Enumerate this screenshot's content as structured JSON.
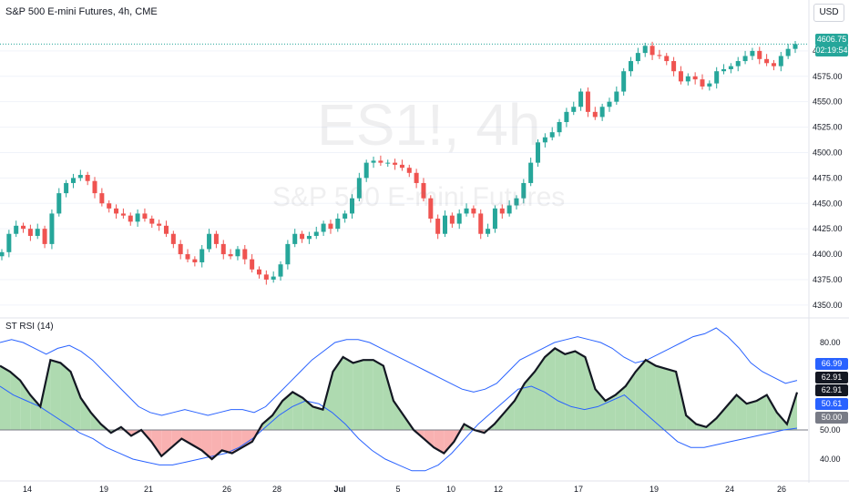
{
  "header": {
    "symbol_title": "S&P 500 E-mini Futures, 4h, CME",
    "currency": "USD"
  },
  "watermark": {
    "ticker": "ES1!, 4h",
    "name": "S&P 500 E-mini Futures"
  },
  "indicator": {
    "title": "ST RSI (14)"
  },
  "price_labels": {
    "last_price": "4606.75",
    "countdown": "02:19:54",
    "upper_band": "66.99",
    "rsi_value_1": "62.91",
    "rsi_value_2": "62.91",
    "lower_band": "50.61",
    "mid_line": "50.00"
  },
  "colors": {
    "up": "#26a69a",
    "down": "#ef5350",
    "rsi_fill_up": "#a5d6a7",
    "rsi_fill_down": "#f8a8a8",
    "band": "#2962ff",
    "rsi_line": "#131722"
  },
  "chart_data": [
    {
      "type": "candlestick",
      "title": "S&P 500 E-mini Futures, 4h, CME",
      "y_ticks": [
        4350,
        4375,
        4400,
        4425,
        4450,
        4475,
        4500,
        4525,
        4550,
        4575,
        4600
      ],
      "ylim": [
        4340,
        4625
      ],
      "x_ticks": [
        "14",
        "19",
        "21",
        "26",
        "28",
        "Jul",
        "5",
        "10",
        "12",
        "17",
        "19",
        "24",
        "26"
      ],
      "close_path": [
        4402,
        4420,
        4428,
        4425,
        4418,
        4425,
        4410,
        4440,
        4460,
        4470,
        4475,
        4478,
        4472,
        4460,
        4450,
        4445,
        4440,
        4438,
        4432,
        4440,
        4435,
        4430,
        4428,
        4420,
        4410,
        4400,
        4395,
        4392,
        4405,
        4420,
        4410,
        4400,
        4398,
        4405,
        4395,
        4385,
        4380,
        4375,
        4378,
        4390,
        4410,
        4420,
        4415,
        4418,
        4422,
        4430,
        4425,
        4435,
        4440,
        4455,
        4475,
        4490,
        4492,
        4490,
        4490,
        4488,
        4485,
        4480,
        4470,
        4455,
        4435,
        4420,
        4438,
        4430,
        4440,
        4445,
        4440,
        4420,
        4425,
        4445,
        4440,
        4448,
        4455,
        4470,
        4490,
        4510,
        4515,
        4520,
        4530,
        4540,
        4545,
        4560,
        4540,
        4535,
        4545,
        4550,
        4560,
        4580,
        4590,
        4598,
        4605,
        4596,
        4595,
        4590,
        4580,
        4570,
        4575,
        4572,
        4565,
        4568,
        4580,
        4582,
        4585,
        4590,
        4595,
        4600,
        4592,
        4588,
        4585,
        4595,
        4602,
        4606.75
      ],
      "last_price": 4606.75
    },
    {
      "type": "line",
      "title": "ST RSI (14)",
      "y_ticks": [
        40,
        50,
        80
      ],
      "ylim": [
        35,
        85
      ],
      "midline": 50,
      "series": [
        {
          "name": "ST RSI (14)",
          "values": [
            72,
            70,
            67,
            62,
            58,
            74,
            73,
            70,
            61,
            56,
            52,
            49,
            51,
            48,
            50,
            46,
            41,
            44,
            47,
            45,
            43,
            40,
            43,
            42,
            44,
            46,
            52,
            55,
            60,
            63,
            61,
            58,
            57,
            70,
            75,
            73,
            74,
            74,
            72,
            60,
            55,
            50,
            47,
            44,
            42,
            46,
            52,
            50,
            49,
            52,
            56,
            60,
            66,
            70,
            75,
            78,
            76,
            77,
            75,
            64,
            60,
            62,
            65,
            70,
            74,
            72,
            71,
            70,
            55,
            52,
            51,
            54,
            58,
            62,
            59,
            60,
            62,
            56,
            52,
            62.91
          ]
        },
        {
          "name": "upper band",
          "values": [
            80,
            81,
            80,
            78,
            76,
            78,
            79,
            77,
            74,
            70,
            66,
            62,
            58,
            56,
            55,
            56,
            57,
            56,
            55,
            56,
            57,
            57,
            56,
            58,
            62,
            66,
            70,
            74,
            77,
            80,
            81,
            81,
            80,
            78,
            76,
            74,
            72,
            70,
            68,
            66,
            64,
            63,
            64,
            66,
            70,
            74,
            76,
            78,
            80,
            81,
            82,
            81,
            80,
            78,
            75,
            73,
            74,
            76,
            78,
            80,
            82,
            83,
            85,
            82,
            78,
            73,
            70,
            68,
            66,
            66.99
          ]
        },
        {
          "name": "lower band",
          "values": [
            65,
            62,
            60,
            58,
            55,
            52,
            49,
            47,
            44,
            42,
            40,
            39,
            38,
            38,
            39,
            40,
            41,
            42,
            44,
            47,
            51,
            55,
            58,
            60,
            59,
            56,
            52,
            47,
            43,
            40,
            38,
            36,
            36,
            38,
            42,
            47,
            52,
            56,
            60,
            64,
            65,
            63,
            60,
            58,
            57,
            58,
            60,
            62,
            58,
            54,
            50,
            46,
            44,
            44,
            45,
            46,
            47,
            48,
            49,
            50,
            50.61
          ]
        }
      ]
    }
  ]
}
